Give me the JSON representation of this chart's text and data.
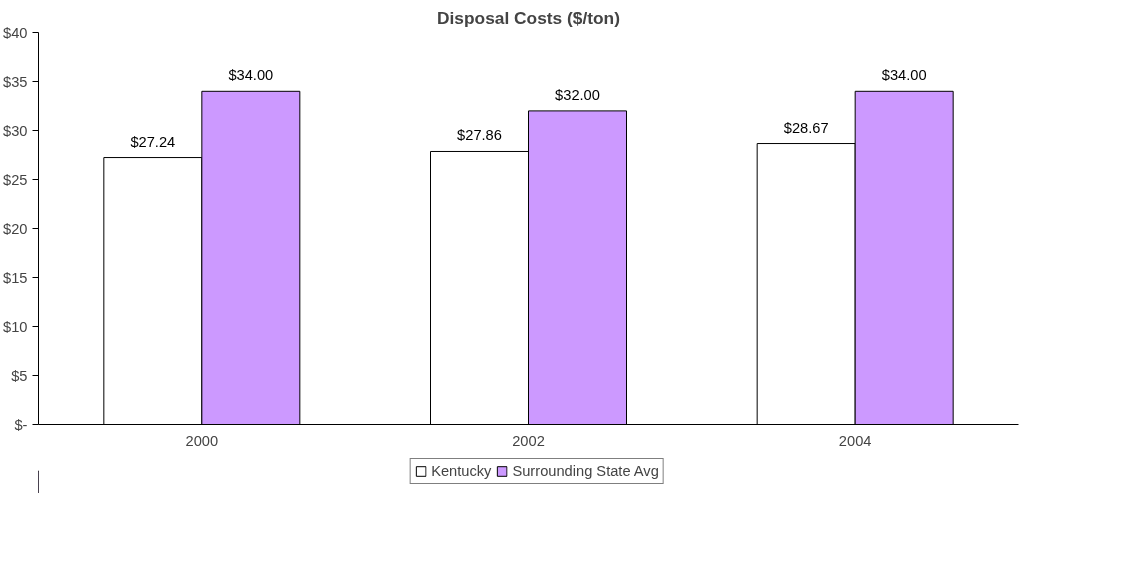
{
  "chart_data": {
    "type": "bar",
    "title": "Disposal Costs ($/ton)",
    "categories": [
      "2000",
      "2002",
      "2004"
    ],
    "series": [
      {
        "name": "Kentucky",
        "color": "#ffffff",
        "values": [
          27.24,
          27.86,
          28.67
        ],
        "value_labels": [
          "$27.24",
          "$27.86",
          "$28.67"
        ]
      },
      {
        "name": "Surrounding State Avg",
        "color": "#cc99ff",
        "values": [
          34.0,
          32.0,
          34.0
        ],
        "value_labels": [
          "$34.00",
          "$32.00",
          "$34.00"
        ]
      }
    ],
    "ylim": [
      0,
      40
    ],
    "yticks": [
      {
        "value": 0,
        "label": "$-"
      },
      {
        "value": 5,
        "label": "$5"
      },
      {
        "value": 10,
        "label": "$10"
      },
      {
        "value": 15,
        "label": "$15"
      },
      {
        "value": 20,
        "label": "$20"
      },
      {
        "value": 25,
        "label": "$25"
      },
      {
        "value": 30,
        "label": "$30"
      },
      {
        "value": 35,
        "label": "$35"
      },
      {
        "value": 40,
        "label": "$40"
      }
    ],
    "grid": false,
    "legend": "bottom"
  }
}
